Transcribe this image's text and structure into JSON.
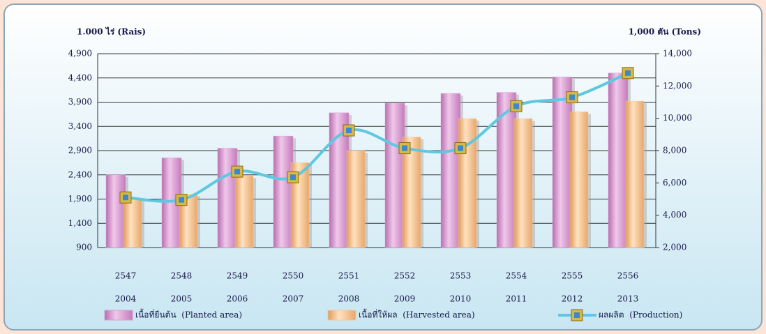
{
  "chart_data": {
    "type": "bar-line",
    "y_label": "1.000 ไร่ (Rais)",
    "y2_label": "1,000 ตัน (Tons)",
    "categories": [
      [
        "2547",
        "2004"
      ],
      [
        "2548",
        "2005"
      ],
      [
        "2549",
        "2006"
      ],
      [
        "2550",
        "2007"
      ],
      [
        "2551",
        "2008"
      ],
      [
        "2552",
        "2009"
      ],
      [
        "2553",
        "2010"
      ],
      [
        "2554",
        "2011"
      ],
      [
        "2555",
        "2012"
      ],
      [
        "2556",
        "2013"
      ]
    ],
    "series": [
      {
        "name": "เนื้อที่ยืนต้น  (Planted area)",
        "type": "bar",
        "color": "#d9a0d0",
        "values": [
          2400,
          2750,
          2950,
          3200,
          3680,
          3880,
          4080,
          4100,
          4420,
          4500
        ]
      },
      {
        "name": "เนื้อที่ให้ผล  (Harvested area)",
        "type": "bar",
        "color": "#f8c896",
        "values": [
          1900,
          2000,
          2380,
          2650,
          2900,
          3180,
          3560,
          3560,
          3700,
          3920
        ]
      },
      {
        "name": "ผลผลิต  (Production)",
        "type": "line",
        "axis": "y2",
        "color": "#5ec8e0",
        "values": [
          5100,
          4950,
          6700,
          6350,
          9250,
          8150,
          8150,
          10750,
          11300,
          12800
        ]
      }
    ],
    "ylim": [
      900,
      4900
    ],
    "yticks": [
      900,
      {
        "value": 1400,
        "label": "1,400"
      },
      {
        "value": 1900,
        "label": "1,900"
      },
      {
        "value": 2400,
        "label": "2,400"
      },
      {
        "value": 2900,
        "label": "2,900"
      },
      {
        "value": 3400,
        "label": "3,400"
      },
      {
        "value": 3900,
        "label": "3,900"
      },
      {
        "value": 4400,
        "label": "4,400"
      },
      {
        "value": 4900,
        "label": "4,900"
      }
    ],
    "y2lim": [
      2000,
      14000
    ],
    "y2ticks": [
      {
        "value": 2000,
        "label": "2,000"
      },
      {
        "value": 4000,
        "label": "4,000"
      },
      {
        "value": 6000,
        "label": "6,000"
      },
      {
        "value": 8000,
        "label": "8,000"
      },
      {
        "value": 10000,
        "label": "10,000"
      },
      {
        "value": 12000,
        "label": "12,000"
      },
      {
        "value": 14000,
        "label": "14,000"
      }
    ],
    "grid": true
  }
}
